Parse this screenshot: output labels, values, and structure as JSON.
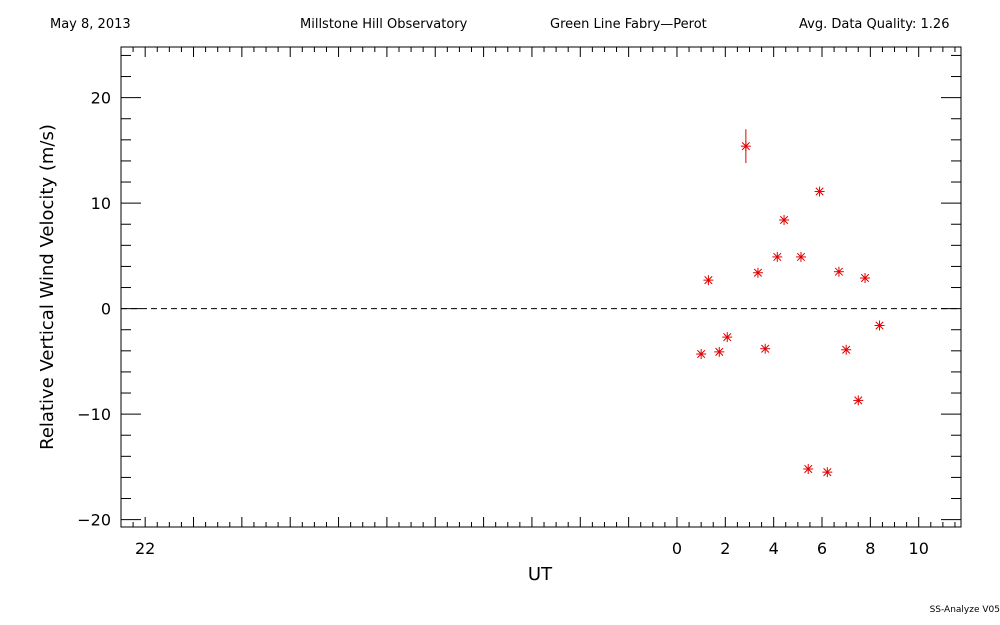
{
  "header": {
    "date": "May 8, 2013",
    "observatory": "Millstone Hill Observatory",
    "instrument": "Green Line Fabry—Perot",
    "quality": "Avg. Data Quality: 1.26"
  },
  "footer": {
    "version": "SS-Analyze V05"
  },
  "chart_data": {
    "type": "scatter",
    "xlabel": "UT",
    "ylabel": "Relative Vertical Wind Velocity (m/s)",
    "xlim": [
      -23.0,
      11.75
    ],
    "ylim": [
      -20.7,
      24.8
    ],
    "xticks": [
      -22,
      0,
      2,
      4,
      6,
      8,
      10
    ],
    "xtick_labels": [
      "22",
      "0",
      "2",
      "4",
      "6",
      "8",
      "10"
    ],
    "yticks": [
      -20,
      -10,
      0,
      10,
      20
    ],
    "ytick_labels": [
      "−20",
      "−10",
      "0",
      "10",
      "20"
    ],
    "zero_line": "dashed",
    "marker_color": "#e00000",
    "points": [
      {
        "x": 1.0,
        "y": -4.3
      },
      {
        "x": 1.3,
        "y": 2.7
      },
      {
        "x": 1.75,
        "y": -4.1
      },
      {
        "x": 2.08,
        "y": -2.7
      },
      {
        "x": 2.85,
        "y": 15.4,
        "err": 1.6
      },
      {
        "x": 3.35,
        "y": 3.4
      },
      {
        "x": 3.65,
        "y": -3.8
      },
      {
        "x": 4.15,
        "y": 4.9
      },
      {
        "x": 4.43,
        "y": 8.4
      },
      {
        "x": 5.13,
        "y": 4.9
      },
      {
        "x": 5.43,
        "y": -15.2
      },
      {
        "x": 5.9,
        "y": 11.1
      },
      {
        "x": 6.22,
        "y": -15.5
      },
      {
        "x": 6.7,
        "y": 3.5
      },
      {
        "x": 7.0,
        "y": -3.9
      },
      {
        "x": 7.5,
        "y": -8.7
      },
      {
        "x": 7.78,
        "y": 2.9
      },
      {
        "x": 8.38,
        "y": -1.6
      }
    ]
  }
}
